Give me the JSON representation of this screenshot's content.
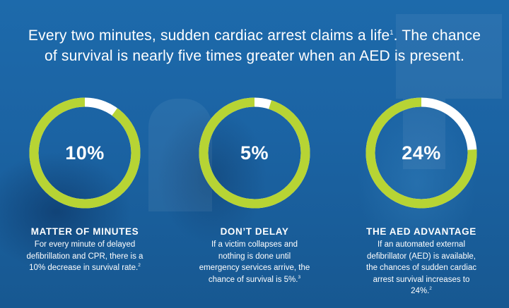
{
  "headline": {
    "line1": "Every two minutes, sudden cardiac arrest claims a life",
    "line1_ref": "1",
    "line1_tail": ". The chance",
    "line2": "of survival is nearly five times greater when an AED is present."
  },
  "colors": {
    "ring_fill": "#b7d434",
    "ring_remainder": "#ffffff",
    "background": "#1a5f9e"
  },
  "stats": [
    {
      "value": "10%",
      "fill_fraction": 0.9,
      "title": "MATTER OF MINUTES",
      "body": "For every minute of delayed defibrillation and CPR, there is a 10% decrease in survival rate.",
      "ref": "2"
    },
    {
      "value": "5%",
      "fill_fraction": 0.95,
      "title": "DON’T DELAY",
      "body": "If a victim collapses and nothing is done until emergency services arrive, the chance of survival is 5%.",
      "ref": "3"
    },
    {
      "value": "24%",
      "fill_fraction": 0.76,
      "title": "THE AED ADVANTAGE",
      "body": "If an automated external defibrillator (AED) is available, the chances of sudden cardiac arrest survival increases to 24%.",
      "ref": "2"
    }
  ]
}
